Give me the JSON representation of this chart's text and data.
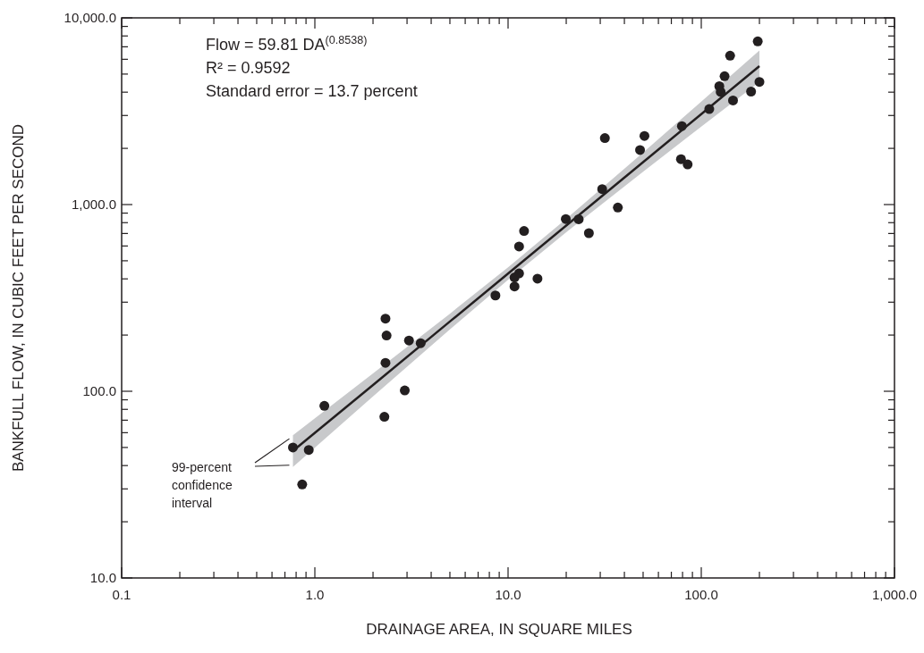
{
  "chart_data": {
    "type": "scatter",
    "xlabel": "DRAINAGE AREA, IN SQUARE MILES",
    "ylabel": "BANKFULL FLOW, IN CUBIC FEET PER SECOND",
    "log": "xy",
    "grid": false,
    "marker": "circle",
    "xlim": [
      0.1,
      1000
    ],
    "ylim": [
      10,
      10000
    ],
    "xticks": [
      {
        "value": 0.1,
        "label": "0.1"
      },
      {
        "value": 0.2,
        "label": null
      },
      {
        "value": 0.3,
        "label": null
      },
      {
        "value": 0.4,
        "label": null
      },
      {
        "value": 0.5,
        "label": null
      },
      {
        "value": 0.6,
        "label": null
      },
      {
        "value": 0.7,
        "label": null
      },
      {
        "value": 0.8,
        "label": null
      },
      {
        "value": 0.9,
        "label": null
      },
      {
        "value": 1,
        "label": "1.0"
      },
      {
        "value": 2,
        "label": null
      },
      {
        "value": 3,
        "label": null
      },
      {
        "value": 4,
        "label": null
      },
      {
        "value": 5,
        "label": null
      },
      {
        "value": 6,
        "label": null
      },
      {
        "value": 7,
        "label": null
      },
      {
        "value": 8,
        "label": null
      },
      {
        "value": 9,
        "label": null
      },
      {
        "value": 10,
        "label": "10.0"
      },
      {
        "value": 20,
        "label": null
      },
      {
        "value": 30,
        "label": null
      },
      {
        "value": 40,
        "label": null
      },
      {
        "value": 50,
        "label": null
      },
      {
        "value": 60,
        "label": null
      },
      {
        "value": 70,
        "label": null
      },
      {
        "value": 80,
        "label": null
      },
      {
        "value": 90,
        "label": null
      },
      {
        "value": 100,
        "label": "100.0"
      },
      {
        "value": 200,
        "label": null
      },
      {
        "value": 300,
        "label": null
      },
      {
        "value": 400,
        "label": null
      },
      {
        "value": 500,
        "label": null
      },
      {
        "value": 600,
        "label": null
      },
      {
        "value": 700,
        "label": null
      },
      {
        "value": 800,
        "label": null
      },
      {
        "value": 900,
        "label": null
      },
      {
        "value": 1000,
        "label": "1,000.0"
      }
    ],
    "yticks": [
      {
        "value": 10,
        "label": "10.0"
      },
      {
        "value": 20,
        "label": null
      },
      {
        "value": 30,
        "label": null
      },
      {
        "value": 40,
        "label": null
      },
      {
        "value": 50,
        "label": null
      },
      {
        "value": 60,
        "label": null
      },
      {
        "value": 70,
        "label": null
      },
      {
        "value": 80,
        "label": null
      },
      {
        "value": 90,
        "label": null
      },
      {
        "value": 100,
        "label": "100.0"
      },
      {
        "value": 200,
        "label": null
      },
      {
        "value": 300,
        "label": null
      },
      {
        "value": 400,
        "label": null
      },
      {
        "value": 500,
        "label": null
      },
      {
        "value": 600,
        "label": null
      },
      {
        "value": 700,
        "label": null
      },
      {
        "value": 800,
        "label": null
      },
      {
        "value": 900,
        "label": null
      },
      {
        "value": 1000,
        "label": "1,000.0"
      },
      {
        "value": 2000,
        "label": null
      },
      {
        "value": 3000,
        "label": null
      },
      {
        "value": 4000,
        "label": null
      },
      {
        "value": 5000,
        "label": null
      },
      {
        "value": 6000,
        "label": null
      },
      {
        "value": 7000,
        "label": null
      },
      {
        "value": 8000,
        "label": null
      },
      {
        "value": 9000,
        "label": null
      },
      {
        "value": 10000,
        "label": "10,000.0"
      }
    ],
    "series": [
      {
        "type": "line",
        "marker": "none",
        "color": "#231f20",
        "x": [
          0.77,
          2,
          5,
          10,
          20,
          50,
          100,
          200
        ],
        "values": [
          47.9,
          108.1,
          236.4,
          427.2,
          772,
          1689,
          3051,
          5513
        ],
        "lower": [
          39.3,
          93.9,
          214.6,
          395,
          711,
          1501,
          2615,
          4539
        ],
        "upper": [
          58.2,
          124.5,
          260.4,
          461.7,
          838,
          1898,
          3559,
          6697
        ]
      },
      {
        "color": "#231f20",
        "x": [
          2.32,
          2.35,
          3.07,
          3.53,
          2.32,
          2.92,
          1.12,
          2.29,
          0.77,
          0.93,
          0.86,
          31.7,
          50.8,
          48.2,
          30.7,
          37,
          19.9,
          23.2,
          26.2,
          12.1,
          11.4,
          11.4,
          10.8,
          14.2,
          10.8,
          8.6,
          196,
          141,
          132,
          124,
          126,
          200,
          181,
          146,
          110,
          79.4,
          78.5,
          85
        ],
        "values": [
          245,
          199,
          187,
          181,
          142,
          101,
          83.5,
          73,
          50,
          48.5,
          31.7,
          2270,
          2330,
          1960,
          1210,
          964,
          837,
          834,
          703,
          722,
          596,
          428,
          407,
          401,
          364,
          326,
          7480,
          6270,
          4870,
          4310,
          4010,
          4540,
          4030,
          3610,
          3250,
          2630,
          1750,
          1640
        ]
      }
    ],
    "annotations": [
      "Flow = 59.81 DA$^{(0.8538)}$",
      "R² = 0.9592",
      "Standard error = 13.7 percent",
      "99-percent confidence interval"
    ]
  }
}
